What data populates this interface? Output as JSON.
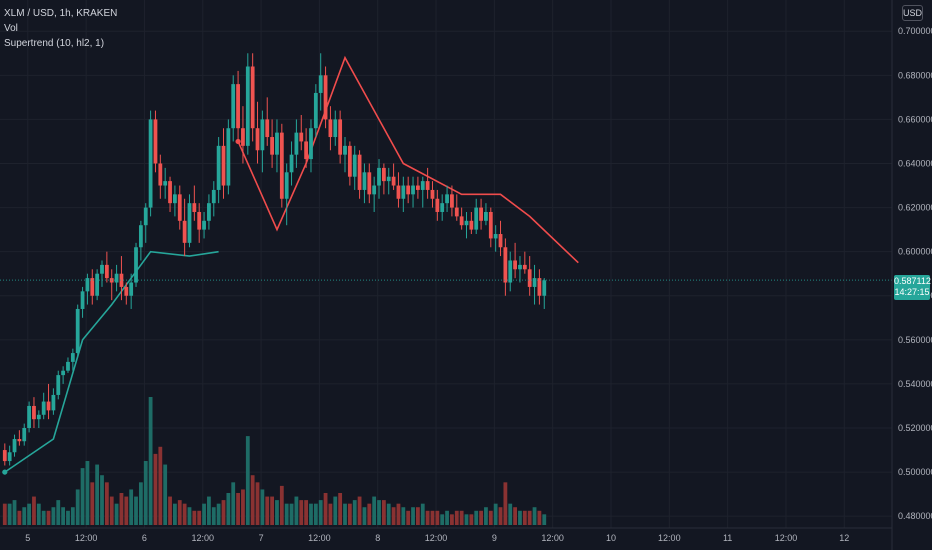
{
  "legend": {
    "symbol": "XLM / USD, 1h, KRAKEN",
    "vol": "Vol",
    "indicator": "Supertrend (10, hl2, 1)"
  },
  "currency_button": "USD",
  "last_price": {
    "value": "0.587112",
    "change": "14:27:15"
  },
  "colors": {
    "up": "#26a69a",
    "down": "#ef5350",
    "st_up": "#26a69a",
    "st_down": "#f04c4c",
    "vol_up": "#1e6c66",
    "vol_down": "#8a3232",
    "bg": "#131722",
    "grid": "#1e222d",
    "axis": "#2a2e39"
  },
  "chart_data": {
    "type": "candlestick",
    "symbol": "XLM / USD",
    "interval": "1h",
    "exchange": "KRAKEN",
    "ylim": [
      0.476,
      0.706
    ],
    "y_ticks": [
      0.48,
      0.5,
      0.52,
      0.54,
      0.56,
      0.58,
      0.6,
      0.62,
      0.64,
      0.66,
      0.68,
      0.7
    ],
    "y_tick_labels": [
      "0.480000",
      "0.500000",
      "0.520000",
      "0.540000",
      "0.560000",
      "0.580000",
      "0.600000",
      "0.620000",
      "0.640000",
      "0.660000",
      "0.680000",
      "0.700000"
    ],
    "x_labels": [
      "5",
      "12:00",
      "6",
      "12:00",
      "7",
      "12:00",
      "8",
      "12:00",
      "9",
      "12:00",
      "10",
      "12:00",
      "11",
      "12:00",
      "12"
    ],
    "bars_per_day": 24,
    "first_bar_hour": "Day 5 00:00 (approx.)",
    "candles": [
      [
        0.51,
        0.513,
        0.503,
        0.505
      ],
      [
        0.505,
        0.512,
        0.503,
        0.509
      ],
      [
        0.509,
        0.517,
        0.507,
        0.515
      ],
      [
        0.515,
        0.519,
        0.512,
        0.514
      ],
      [
        0.514,
        0.522,
        0.512,
        0.52
      ],
      [
        0.52,
        0.532,
        0.518,
        0.53
      ],
      [
        0.53,
        0.534,
        0.52,
        0.524
      ],
      [
        0.524,
        0.528,
        0.52,
        0.526
      ],
      [
        0.526,
        0.536,
        0.524,
        0.532
      ],
      [
        0.532,
        0.54,
        0.524,
        0.528
      ],
      [
        0.528,
        0.538,
        0.526,
        0.535
      ],
      [
        0.535,
        0.546,
        0.533,
        0.544
      ],
      [
        0.544,
        0.548,
        0.54,
        0.546
      ],
      [
        0.546,
        0.552,
        0.545,
        0.55
      ],
      [
        0.55,
        0.556,
        0.546,
        0.554
      ],
      [
        0.554,
        0.576,
        0.552,
        0.574
      ],
      [
        0.574,
        0.584,
        0.57,
        0.582
      ],
      [
        0.582,
        0.59,
        0.576,
        0.588
      ],
      [
        0.588,
        0.592,
        0.576,
        0.58
      ],
      [
        0.58,
        0.592,
        0.578,
        0.59
      ],
      [
        0.59,
        0.596,
        0.584,
        0.594
      ],
      [
        0.594,
        0.6,
        0.586,
        0.588
      ],
      [
        0.588,
        0.592,
        0.578,
        0.586
      ],
      [
        0.586,
        0.594,
        0.582,
        0.59
      ],
      [
        0.59,
        0.598,
        0.578,
        0.584
      ],
      [
        0.584,
        0.586,
        0.576,
        0.58
      ],
      [
        0.58,
        0.59,
        0.574,
        0.586
      ],
      [
        0.586,
        0.604,
        0.584,
        0.602
      ],
      [
        0.602,
        0.614,
        0.596,
        0.612
      ],
      [
        0.612,
        0.622,
        0.604,
        0.62
      ],
      [
        0.62,
        0.664,
        0.616,
        0.66
      ],
      [
        0.66,
        0.664,
        0.636,
        0.64
      ],
      [
        0.64,
        0.644,
        0.624,
        0.63
      ],
      [
        0.63,
        0.638,
        0.624,
        0.632
      ],
      [
        0.632,
        0.634,
        0.618,
        0.622
      ],
      [
        0.622,
        0.63,
        0.616,
        0.626
      ],
      [
        0.626,
        0.63,
        0.61,
        0.614
      ],
      [
        0.614,
        0.624,
        0.598,
        0.604
      ],
      [
        0.604,
        0.626,
        0.602,
        0.622
      ],
      [
        0.622,
        0.63,
        0.614,
        0.618
      ],
      [
        0.618,
        0.622,
        0.604,
        0.61
      ],
      [
        0.61,
        0.618,
        0.606,
        0.614
      ],
      [
        0.614,
        0.626,
        0.61,
        0.622
      ],
      [
        0.622,
        0.632,
        0.616,
        0.628
      ],
      [
        0.628,
        0.652,
        0.622,
        0.648
      ],
      [
        0.648,
        0.656,
        0.624,
        0.63
      ],
      [
        0.63,
        0.66,
        0.626,
        0.656
      ],
      [
        0.656,
        0.68,
        0.65,
        0.676
      ],
      [
        0.676,
        0.682,
        0.65,
        0.656
      ],
      [
        0.656,
        0.666,
        0.64,
        0.648
      ],
      [
        0.648,
        0.69,
        0.644,
        0.684
      ],
      [
        0.684,
        0.69,
        0.65,
        0.656
      ],
      [
        0.656,
        0.668,
        0.64,
        0.646
      ],
      [
        0.646,
        0.664,
        0.636,
        0.66
      ],
      [
        0.66,
        0.67,
        0.648,
        0.652
      ],
      [
        0.652,
        0.66,
        0.638,
        0.644
      ],
      [
        0.644,
        0.66,
        0.636,
        0.654
      ],
      [
        0.654,
        0.658,
        0.62,
        0.624
      ],
      [
        0.624,
        0.64,
        0.612,
        0.636
      ],
      [
        0.636,
        0.65,
        0.63,
        0.644
      ],
      [
        0.644,
        0.66,
        0.638,
        0.654
      ],
      [
        0.654,
        0.662,
        0.646,
        0.65
      ],
      [
        0.65,
        0.656,
        0.638,
        0.642
      ],
      [
        0.642,
        0.66,
        0.636,
        0.656
      ],
      [
        0.656,
        0.676,
        0.652,
        0.672
      ],
      [
        0.672,
        0.69,
        0.664,
        0.68
      ],
      [
        0.68,
        0.684,
        0.656,
        0.66
      ],
      [
        0.66,
        0.666,
        0.646,
        0.652
      ],
      [
        0.652,
        0.664,
        0.648,
        0.66
      ],
      [
        0.66,
        0.664,
        0.64,
        0.644
      ],
      [
        0.644,
        0.652,
        0.636,
        0.648
      ],
      [
        0.648,
        0.65,
        0.63,
        0.634
      ],
      [
        0.634,
        0.648,
        0.628,
        0.644
      ],
      [
        0.644,
        0.646,
        0.624,
        0.628
      ],
      [
        0.628,
        0.64,
        0.622,
        0.636
      ],
      [
        0.636,
        0.64,
        0.622,
        0.626
      ],
      [
        0.626,
        0.634,
        0.618,
        0.63
      ],
      [
        0.63,
        0.642,
        0.624,
        0.638
      ],
      [
        0.638,
        0.64,
        0.626,
        0.632
      ],
      [
        0.632,
        0.638,
        0.626,
        0.634
      ],
      [
        0.634,
        0.64,
        0.628,
        0.63
      ],
      [
        0.63,
        0.636,
        0.62,
        0.624
      ],
      [
        0.624,
        0.634,
        0.618,
        0.63
      ],
      [
        0.63,
        0.634,
        0.622,
        0.626
      ],
      [
        0.626,
        0.634,
        0.62,
        0.63
      ],
      [
        0.63,
        0.634,
        0.624,
        0.628
      ],
      [
        0.628,
        0.634,
        0.62,
        0.632
      ],
      [
        0.632,
        0.638,
        0.624,
        0.628
      ],
      [
        0.628,
        0.632,
        0.62,
        0.624
      ],
      [
        0.624,
        0.628,
        0.614,
        0.618
      ],
      [
        0.618,
        0.626,
        0.614,
        0.622
      ],
      [
        0.622,
        0.63,
        0.618,
        0.626
      ],
      [
        0.626,
        0.63,
        0.616,
        0.62
      ],
      [
        0.62,
        0.626,
        0.614,
        0.616
      ],
      [
        0.616,
        0.62,
        0.61,
        0.612
      ],
      [
        0.612,
        0.618,
        0.606,
        0.614
      ],
      [
        0.614,
        0.618,
        0.608,
        0.61
      ],
      [
        0.61,
        0.624,
        0.608,
        0.62
      ],
      [
        0.62,
        0.624,
        0.61,
        0.614
      ],
      [
        0.614,
        0.622,
        0.612,
        0.618
      ],
      [
        0.618,
        0.62,
        0.602,
        0.606
      ],
      [
        0.606,
        0.612,
        0.6,
        0.608
      ],
      [
        0.608,
        0.614,
        0.598,
        0.602
      ],
      [
        0.602,
        0.606,
        0.58,
        0.586
      ],
      [
        0.586,
        0.6,
        0.582,
        0.596
      ],
      [
        0.596,
        0.604,
        0.588,
        0.592
      ],
      [
        0.592,
        0.598,
        0.586,
        0.594
      ],
      [
        0.594,
        0.6,
        0.59,
        0.592
      ],
      [
        0.592,
        0.598,
        0.58,
        0.584
      ],
      [
        0.584,
        0.594,
        0.576,
        0.588
      ],
      [
        0.588,
        0.592,
        0.576,
        0.58
      ],
      [
        0.58,
        0.588,
        0.574,
        0.587
      ]
    ],
    "volume": [
      6,
      6,
      7,
      4,
      5,
      6,
      8,
      6,
      4,
      4,
      5,
      7,
      5,
      4,
      5,
      10,
      16,
      18,
      12,
      17,
      14,
      12,
      8,
      6,
      9,
      8,
      10,
      8,
      12,
      18,
      36,
      20,
      22,
      17,
      8,
      6,
      7,
      6,
      5,
      4,
      4,
      6,
      8,
      5,
      6,
      7,
      9,
      12,
      9,
      10,
      25,
      14,
      12,
      10,
      8,
      8,
      7,
      11,
      6,
      6,
      8,
      7,
      7,
      6,
      6,
      7,
      9,
      6,
      8,
      9,
      6,
      6,
      7,
      8,
      5,
      6,
      8,
      7,
      7,
      6,
      5,
      6,
      5,
      4,
      5,
      5,
      6,
      4,
      4,
      4,
      3,
      4,
      3,
      4,
      4,
      3,
      3,
      4,
      4,
      5,
      4,
      6,
      5,
      12,
      6,
      5,
      4,
      4,
      4,
      5,
      4,
      3
    ],
    "volume_units": "relative",
    "supertrend_up": [
      [
        0,
        0.5
      ],
      [
        10,
        0.515
      ],
      [
        16,
        0.56
      ],
      [
        22,
        0.576
      ],
      [
        30,
        0.6
      ],
      [
        38,
        0.598
      ],
      [
        44,
        0.6
      ]
    ],
    "supertrend_down": [
      [
        48,
        0.65
      ],
      [
        56,
        0.61
      ],
      [
        62,
        0.64
      ],
      [
        70,
        0.688
      ],
      [
        82,
        0.64
      ],
      [
        94,
        0.626
      ],
      [
        102,
        0.626
      ],
      [
        108,
        0.616
      ],
      [
        118,
        0.595
      ]
    ]
  }
}
